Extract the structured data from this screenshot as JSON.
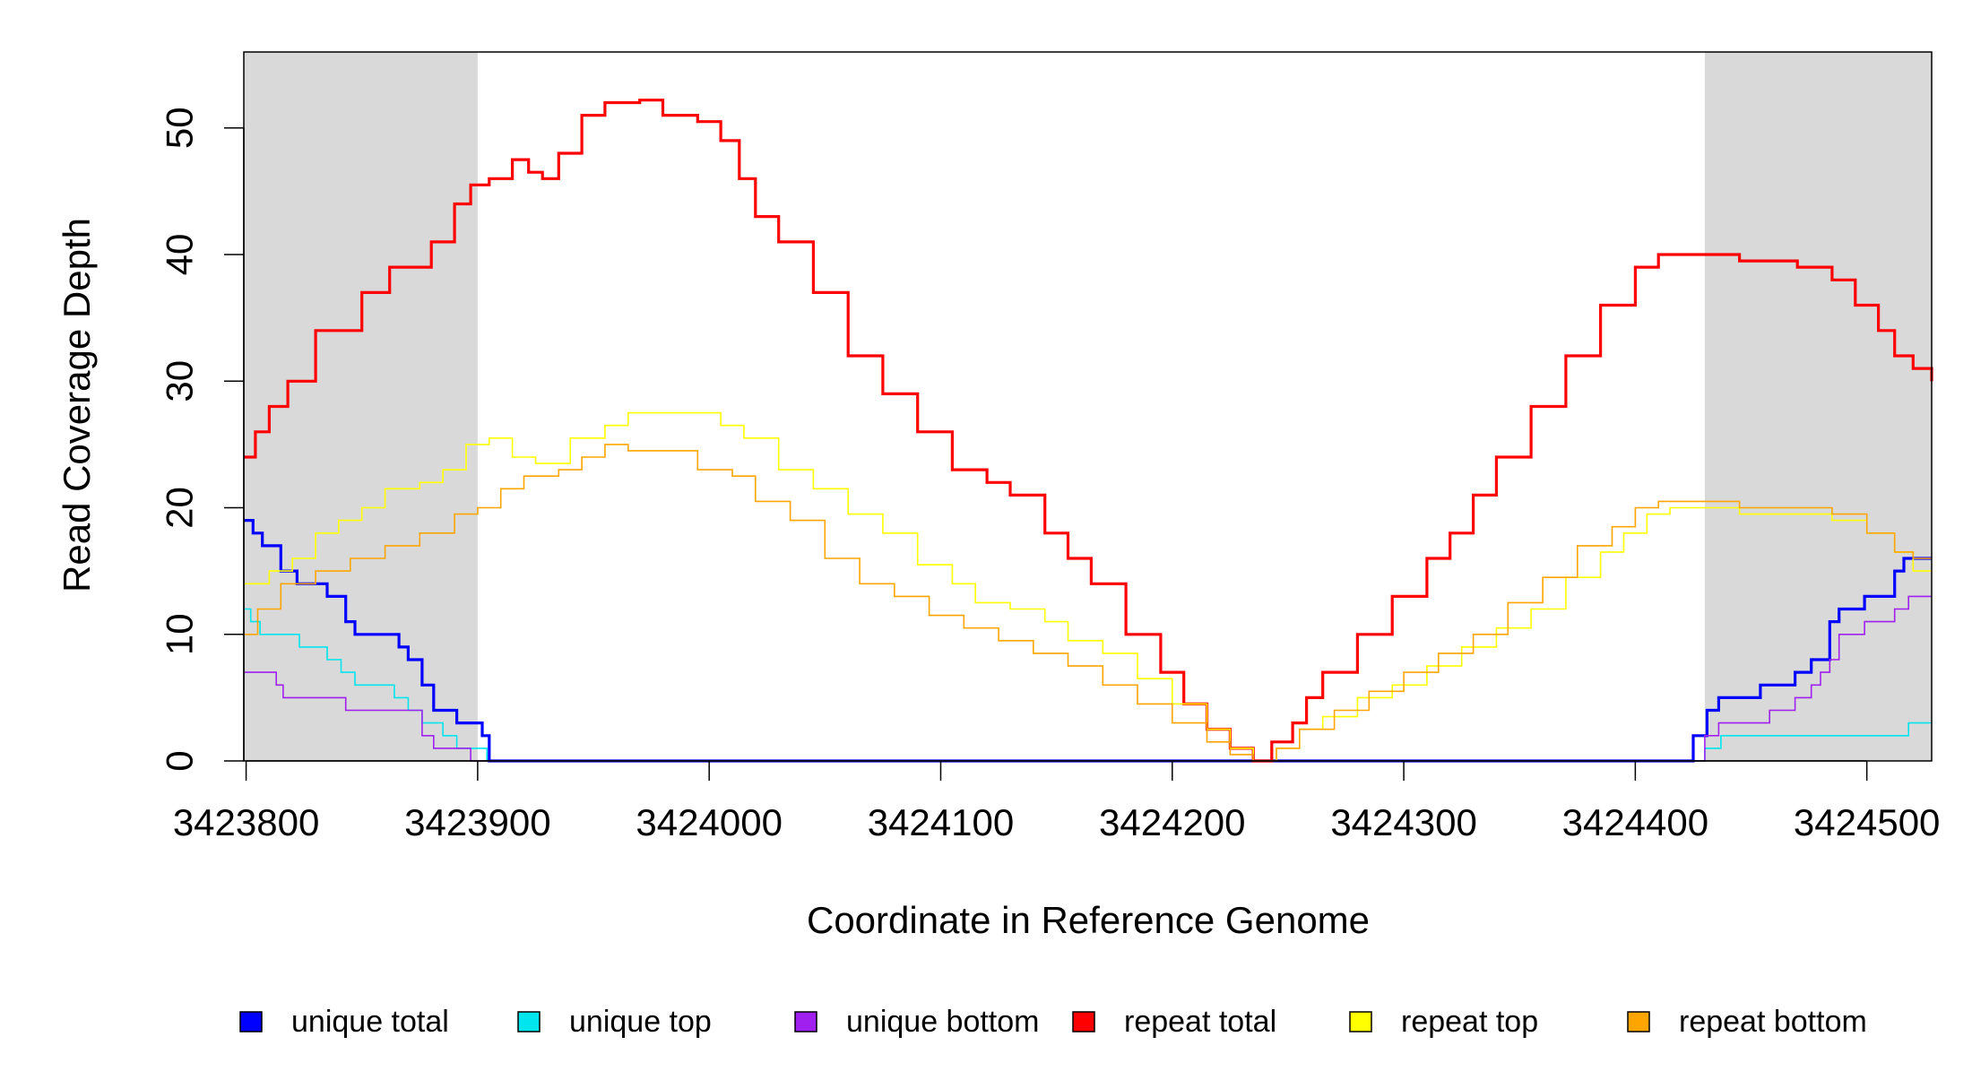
{
  "chart_data": {
    "type": "line",
    "title": "",
    "xlabel": "Coordinate in Reference Genome",
    "ylabel": "Read Coverage Depth",
    "xlim": [
      3423799,
      3424528
    ],
    "ylim": [
      0,
      56
    ],
    "xticks": [
      3423800,
      3423900,
      3424000,
      3424100,
      3424200,
      3424300,
      3424400,
      3424500
    ],
    "yticks": [
      0,
      10,
      20,
      30,
      40,
      50
    ],
    "grid": false,
    "legend_position": "bottom",
    "shaded_regions": [
      {
        "x0": 3423799,
        "x1": 3423900
      },
      {
        "x0": 3424430,
        "x1": 3424528
      }
    ],
    "series": [
      {
        "name": "unique total",
        "color": "#0000FF",
        "points": [
          [
            3423799,
            19
          ],
          [
            3423803,
            18
          ],
          [
            3423807,
            17
          ],
          [
            3423815,
            15
          ],
          [
            3423822,
            14
          ],
          [
            3423835,
            13
          ],
          [
            3423843,
            11
          ],
          [
            3423847,
            10
          ],
          [
            3423866,
            9
          ],
          [
            3423870,
            8
          ],
          [
            3423876,
            6
          ],
          [
            3423881,
            4
          ],
          [
            3423891,
            3
          ],
          [
            3423902,
            2
          ],
          [
            3423905,
            0
          ],
          [
            3424422,
            0
          ],
          [
            3424425,
            2
          ],
          [
            3424431,
            4
          ],
          [
            3424436,
            5
          ],
          [
            3424454,
            6
          ],
          [
            3424469,
            7
          ],
          [
            3424476,
            8
          ],
          [
            3424484,
            11
          ],
          [
            3424488,
            12
          ],
          [
            3424499,
            13
          ],
          [
            3424512,
            15
          ],
          [
            3424516,
            16
          ],
          [
            3424528,
            16
          ]
        ]
      },
      {
        "name": "unique top",
        "color": "#00E5EE",
        "points": [
          [
            3423799,
            12
          ],
          [
            3423802,
            11
          ],
          [
            3423806,
            10
          ],
          [
            3423823,
            9
          ],
          [
            3423835,
            8
          ],
          [
            3423841,
            7
          ],
          [
            3423847,
            6
          ],
          [
            3423864,
            5
          ],
          [
            3423870,
            4
          ],
          [
            3423876,
            3
          ],
          [
            3423885,
            2
          ],
          [
            3423891,
            1
          ],
          [
            3423904,
            0
          ],
          [
            3424425,
            0
          ],
          [
            3424430,
            1
          ],
          [
            3424437,
            2
          ],
          [
            3424518,
            3
          ],
          [
            3424528,
            3
          ]
        ]
      },
      {
        "name": "unique bottom",
        "color": "#A020F0",
        "points": [
          [
            3423799,
            7
          ],
          [
            3423813,
            6
          ],
          [
            3423816,
            5
          ],
          [
            3423843,
            4
          ],
          [
            3423876,
            2
          ],
          [
            3423881,
            1
          ],
          [
            3423897,
            0
          ],
          [
            3424425,
            0
          ],
          [
            3424430,
            2
          ],
          [
            3424436,
            3
          ],
          [
            3424458,
            4
          ],
          [
            3424469,
            5
          ],
          [
            3424476,
            6
          ],
          [
            3424480,
            7
          ],
          [
            3424484,
            8
          ],
          [
            3424488,
            10
          ],
          [
            3424499,
            11
          ],
          [
            3424512,
            12
          ],
          [
            3424518,
            13
          ],
          [
            3424528,
            13
          ]
        ]
      },
      {
        "name": "repeat total",
        "color": "#FF0000",
        "points": [
          [
            3423799,
            24
          ],
          [
            3423804,
            26
          ],
          [
            3423810,
            28
          ],
          [
            3423818,
            30
          ],
          [
            3423830,
            34
          ],
          [
            3423850,
            37
          ],
          [
            3423862,
            39
          ],
          [
            3423880,
            41
          ],
          [
            3423890,
            44
          ],
          [
            3423897,
            45.5
          ],
          [
            3423905,
            46
          ],
          [
            3423915,
            47.5
          ],
          [
            3423922,
            46.5
          ],
          [
            3423928,
            46
          ],
          [
            3423935,
            48
          ],
          [
            3423945,
            51
          ],
          [
            3423955,
            52
          ],
          [
            3423970,
            52.2
          ],
          [
            3423980,
            51
          ],
          [
            3423995,
            50.5
          ],
          [
            3424005,
            49
          ],
          [
            3424013,
            46
          ],
          [
            3424020,
            43
          ],
          [
            3424030,
            41
          ],
          [
            3424045,
            37
          ],
          [
            3424060,
            32
          ],
          [
            3424075,
            29
          ],
          [
            3424090,
            26
          ],
          [
            3424105,
            23
          ],
          [
            3424120,
            22
          ],
          [
            3424130,
            21
          ],
          [
            3424145,
            18
          ],
          [
            3424155,
            16
          ],
          [
            3424165,
            14
          ],
          [
            3424180,
            10
          ],
          [
            3424195,
            7
          ],
          [
            3424205,
            4.5
          ],
          [
            3424215,
            2.5
          ],
          [
            3424225,
            1
          ],
          [
            3424235,
            0
          ],
          [
            3424243,
            1.5
          ],
          [
            3424252,
            3
          ],
          [
            3424258,
            5
          ],
          [
            3424265,
            7
          ],
          [
            3424280,
            10
          ],
          [
            3424295,
            13
          ],
          [
            3424310,
            16
          ],
          [
            3424320,
            18
          ],
          [
            3424330,
            21
          ],
          [
            3424340,
            24
          ],
          [
            3424355,
            28
          ],
          [
            3424370,
            32
          ],
          [
            3424385,
            36
          ],
          [
            3424400,
            39
          ],
          [
            3424410,
            40
          ],
          [
            3424420,
            40
          ],
          [
            3424430,
            40
          ],
          [
            3424445,
            39.5
          ],
          [
            3424470,
            39
          ],
          [
            3424485,
            38
          ],
          [
            3424495,
            36
          ],
          [
            3424505,
            34
          ],
          [
            3424512,
            32
          ],
          [
            3424520,
            31
          ],
          [
            3424528,
            30
          ]
        ]
      },
      {
        "name": "repeat top",
        "color": "#FFFF00",
        "points": [
          [
            3423799,
            14
          ],
          [
            3423810,
            15
          ],
          [
            3423820,
            16
          ],
          [
            3423830,
            18
          ],
          [
            3423840,
            19
          ],
          [
            3423850,
            20
          ],
          [
            3423860,
            21.5
          ],
          [
            3423875,
            22
          ],
          [
            3423885,
            23
          ],
          [
            3423895,
            25
          ],
          [
            3423905,
            25.5
          ],
          [
            3423915,
            24
          ],
          [
            3423925,
            23.5
          ],
          [
            3423940,
            25.5
          ],
          [
            3423955,
            26.5
          ],
          [
            3423965,
            27.5
          ],
          [
            3423980,
            27.5
          ],
          [
            3423995,
            27.5
          ],
          [
            3424005,
            26.5
          ],
          [
            3424015,
            25.5
          ],
          [
            3424030,
            23
          ],
          [
            3424045,
            21.5
          ],
          [
            3424060,
            19.5
          ],
          [
            3424075,
            18
          ],
          [
            3424090,
            15.5
          ],
          [
            3424105,
            14
          ],
          [
            3424115,
            12.5
          ],
          [
            3424130,
            12
          ],
          [
            3424145,
            11
          ],
          [
            3424155,
            9.5
          ],
          [
            3424170,
            8.5
          ],
          [
            3424185,
            6.5
          ],
          [
            3424200,
            4.5
          ],
          [
            3424215,
            2.5
          ],
          [
            3424225,
            1
          ],
          [
            3424235,
            0
          ],
          [
            3424245,
            1
          ],
          [
            3424255,
            2.5
          ],
          [
            3424265,
            3.5
          ],
          [
            3424280,
            5
          ],
          [
            3424295,
            6
          ],
          [
            3424310,
            7.5
          ],
          [
            3424325,
            9
          ],
          [
            3424340,
            10.5
          ],
          [
            3424355,
            12
          ],
          [
            3424370,
            14.5
          ],
          [
            3424385,
            16.5
          ],
          [
            3424395,
            18
          ],
          [
            3424405,
            19.5
          ],
          [
            3424415,
            20
          ],
          [
            3424445,
            19.5
          ],
          [
            3424470,
            19.5
          ],
          [
            3424485,
            19
          ],
          [
            3424500,
            18
          ],
          [
            3424512,
            16.5
          ],
          [
            3424520,
            15
          ],
          [
            3424528,
            15
          ]
        ]
      },
      {
        "name": "repeat bottom",
        "color": "#FFA500",
        "points": [
          [
            3423799,
            10
          ],
          [
            3423805,
            12
          ],
          [
            3423815,
            14
          ],
          [
            3423830,
            15
          ],
          [
            3423845,
            16
          ],
          [
            3423860,
            17
          ],
          [
            3423875,
            18
          ],
          [
            3423890,
            19.5
          ],
          [
            3423900,
            20
          ],
          [
            3423910,
            21.5
          ],
          [
            3423920,
            22.5
          ],
          [
            3423935,
            23
          ],
          [
            3423945,
            24
          ],
          [
            3423955,
            25
          ],
          [
            3423965,
            24.5
          ],
          [
            3423980,
            24.5
          ],
          [
            3423995,
            23
          ],
          [
            3424010,
            22.5
          ],
          [
            3424020,
            20.5
          ],
          [
            3424035,
            19
          ],
          [
            3424050,
            16
          ],
          [
            3424065,
            14
          ],
          [
            3424080,
            13
          ],
          [
            3424095,
            11.5
          ],
          [
            3424110,
            10.5
          ],
          [
            3424125,
            9.5
          ],
          [
            3424140,
            8.5
          ],
          [
            3424155,
            7.5
          ],
          [
            3424170,
            6
          ],
          [
            3424185,
            4.5
          ],
          [
            3424200,
            3
          ],
          [
            3424215,
            1.5
          ],
          [
            3424225,
            0.5
          ],
          [
            3424235,
            0
          ],
          [
            3424245,
            1
          ],
          [
            3424255,
            2.5
          ],
          [
            3424270,
            4
          ],
          [
            3424285,
            5.5
          ],
          [
            3424300,
            7
          ],
          [
            3424315,
            8.5
          ],
          [
            3424330,
            10
          ],
          [
            3424345,
            12.5
          ],
          [
            3424360,
            14.5
          ],
          [
            3424375,
            17
          ],
          [
            3424390,
            18.5
          ],
          [
            3424400,
            20
          ],
          [
            3424410,
            20.5
          ],
          [
            3424420,
            20.5
          ],
          [
            3424445,
            20
          ],
          [
            3424470,
            20
          ],
          [
            3424485,
            19.5
          ],
          [
            3424500,
            18
          ],
          [
            3424512,
            16.5
          ],
          [
            3424520,
            16
          ],
          [
            3424528,
            16
          ]
        ]
      }
    ]
  }
}
